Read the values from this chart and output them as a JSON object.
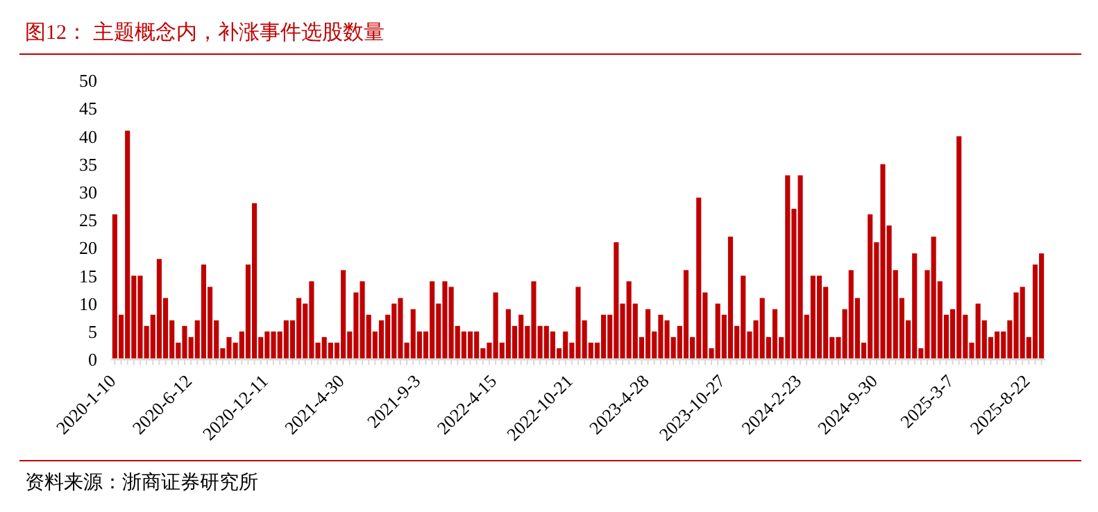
{
  "chart_data": {
    "type": "bar",
    "title": "图12：  主题概念内，补涨事件选股数量",
    "annotations": [
      "资料来源：浙商证券研究所"
    ],
    "categories": [
      "2020-1-10",
      null,
      null,
      null,
      null,
      null,
      null,
      null,
      null,
      null,
      null,
      null,
      "2020-6-12",
      null,
      null,
      null,
      null,
      null,
      null,
      null,
      null,
      null,
      null,
      null,
      "2020-12-11",
      null,
      null,
      null,
      null,
      null,
      null,
      null,
      null,
      null,
      null,
      null,
      "2021-4-30",
      null,
      null,
      null,
      null,
      null,
      null,
      null,
      null,
      null,
      null,
      null,
      "2021-9-3",
      null,
      null,
      null,
      null,
      null,
      null,
      null,
      null,
      null,
      null,
      null,
      "2022-4-15",
      null,
      null,
      null,
      null,
      null,
      null,
      null,
      null,
      null,
      null,
      null,
      "2022-10-21",
      null,
      null,
      null,
      null,
      null,
      null,
      null,
      null,
      null,
      null,
      null,
      "2023-4-28",
      null,
      null,
      null,
      null,
      null,
      null,
      null,
      null,
      null,
      null,
      null,
      "2023-10-27",
      null,
      null,
      null,
      null,
      null,
      null,
      null,
      null,
      null,
      null,
      null,
      "2024-2-23",
      null,
      null,
      null,
      null,
      null,
      null,
      null,
      null,
      null,
      null,
      null,
      "2024-9-30",
      null,
      null,
      null,
      null,
      null,
      null,
      null,
      null,
      null,
      null,
      null,
      "2025-3-7",
      null,
      null,
      null,
      null,
      null,
      null,
      null,
      null,
      null,
      null,
      null,
      "2025-8-22",
      null,
      null
    ],
    "values": [
      26,
      8,
      41,
      15,
      15,
      6,
      8,
      18,
      11,
      7,
      3,
      6,
      4,
      7,
      17,
      13,
      7,
      2,
      4,
      3,
      5,
      17,
      28,
      4,
      5,
      5,
      5,
      7,
      7,
      11,
      10,
      14,
      3,
      4,
      3,
      3,
      16,
      5,
      12,
      14,
      8,
      5,
      7,
      8,
      10,
      11,
      3,
      9,
      5,
      5,
      14,
      10,
      14,
      13,
      6,
      5,
      5,
      5,
      2,
      3,
      12,
      3,
      9,
      6,
      8,
      6,
      14,
      6,
      6,
      5,
      2,
      5,
      3,
      13,
      7,
      3,
      3,
      8,
      8,
      21,
      10,
      14,
      10,
      4,
      9,
      5,
      8,
      7,
      4,
      6,
      16,
      4,
      29,
      12,
      2,
      10,
      8,
      22,
      6,
      15,
      5,
      7,
      11,
      4,
      9,
      4,
      33,
      27,
      33,
      8,
      15,
      15,
      13,
      4,
      4,
      9,
      16,
      11,
      3,
      26,
      21,
      35,
      24,
      16,
      11,
      7,
      19,
      2,
      16,
      22,
      14,
      8,
      9,
      40,
      8,
      3,
      10,
      7,
      4,
      5,
      5,
      7,
      12,
      13,
      4,
      17,
      19
    ],
    "color": "#c00000",
    "ylim": [
      0,
      50
    ],
    "yticks": [
      0,
      5,
      10,
      15,
      20,
      25,
      30,
      35,
      40,
      45,
      50
    ],
    "grid": false
  }
}
